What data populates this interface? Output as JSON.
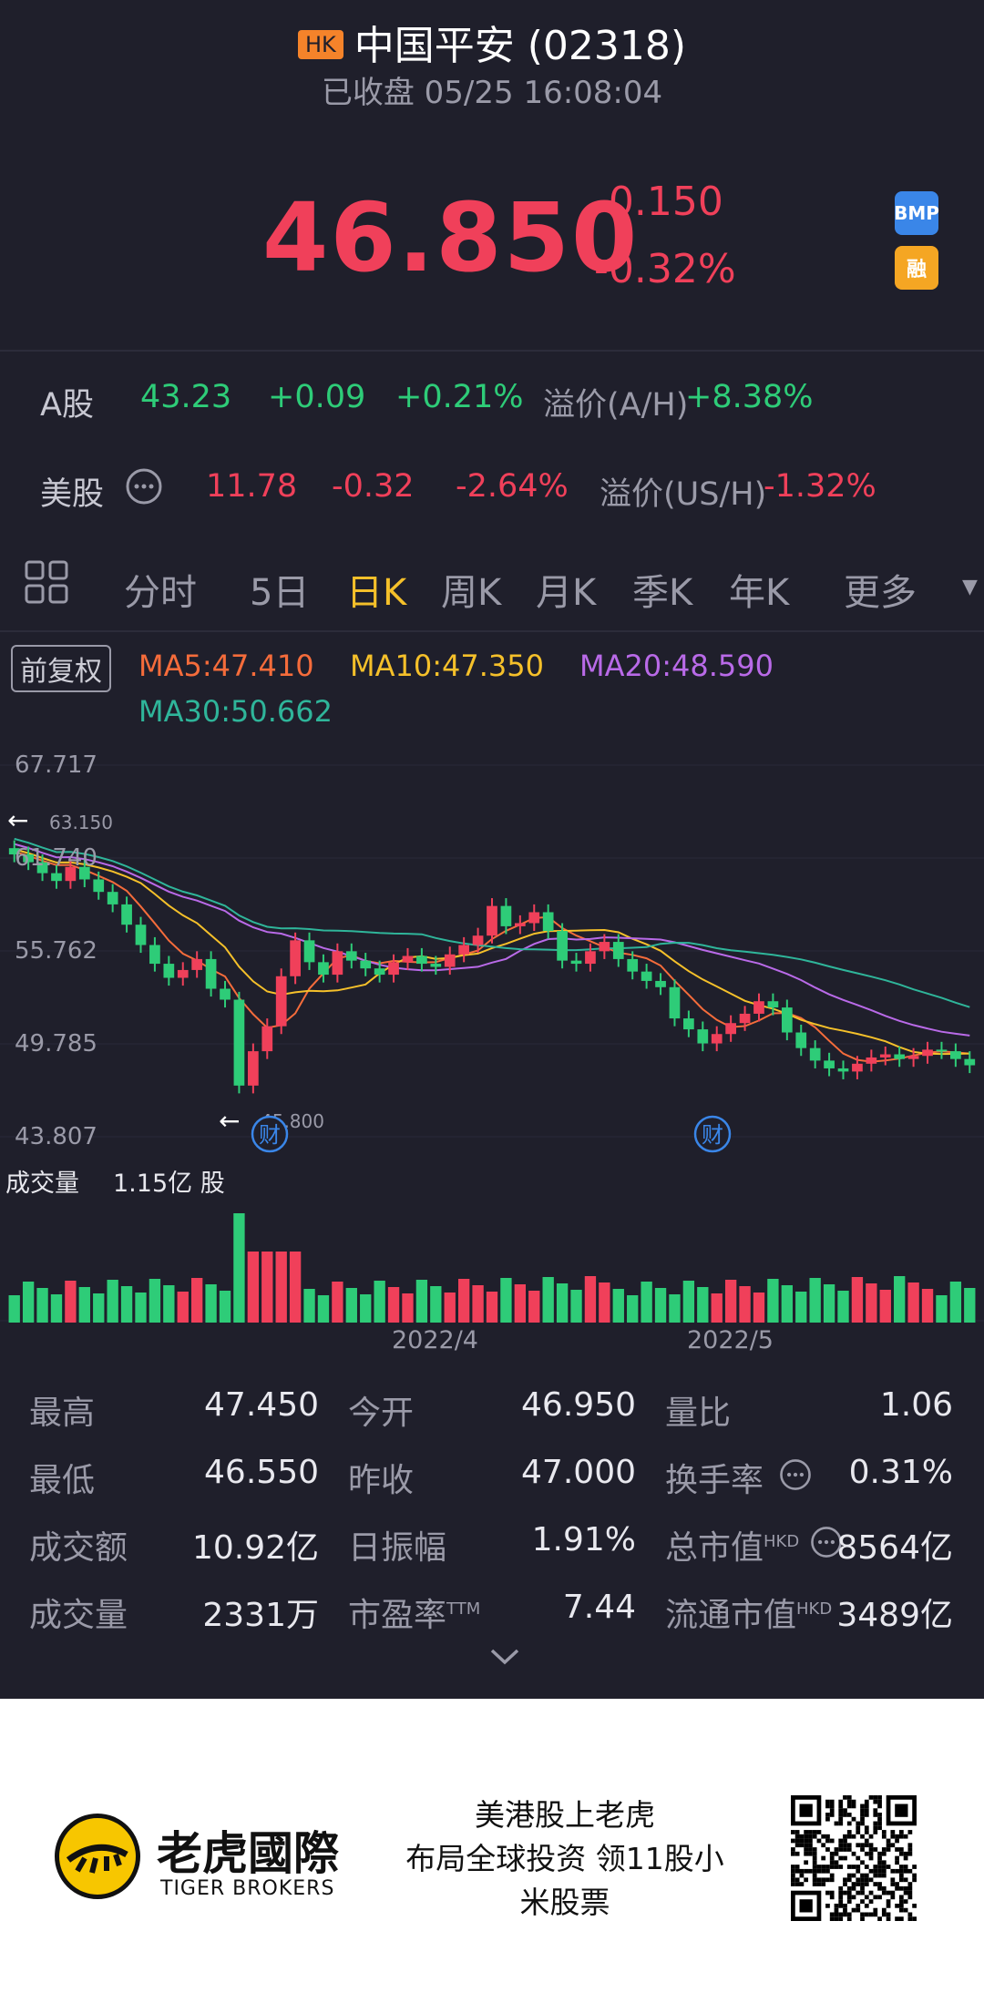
{
  "header": {
    "market_badge": "HK",
    "stock_title": "中国平安 (02318)",
    "status": "已收盘",
    "datetime": "05/25 16:08:04",
    "price": "46.850",
    "change": "-0.150",
    "change_pct": "-0.32%",
    "badge_bmp": "BMP",
    "badge_margin": "融"
  },
  "a_share": {
    "label": "A股",
    "price": "43.23",
    "change": "+0.09",
    "change_pct": "+0.21%",
    "premium_label": "溢价(A/H)",
    "premium": "+8.38%"
  },
  "us_share": {
    "label": "美股",
    "price": "11.78",
    "change": "-0.32",
    "change_pct": "-2.64%",
    "premium_label": "溢价(US/H)",
    "premium": "-1.32%"
  },
  "tabs": [
    "分时",
    "5日",
    "日K",
    "周K",
    "月K",
    "季K",
    "年K",
    "更多"
  ],
  "active_tab": "日K",
  "ma": {
    "adjust": "前复权",
    "ma5": "MA5:47.410",
    "ma10": "MA10:47.350",
    "ma20": "MA20:48.590",
    "ma30": "MA30:50.662"
  },
  "chart_data": {
    "type": "candlestick",
    "y_ticks": [
      "67.717",
      "61.740",
      "55.762",
      "49.785",
      "43.807"
    ],
    "high_marker": "63.150",
    "low_marker": "45.800",
    "earnings_marker": "财",
    "x_labels": [
      "2022/4",
      "2022/5"
    ],
    "volume_label": "成交量",
    "volume_value": "1.15亿 股",
    "colors": {
      "up": "#f0405a",
      "down": "#2ecc78",
      "ma5": "#f56c3b",
      "ma10": "#f5c02a",
      "ma20": "#b96ae8",
      "ma30": "#2fb59a"
    }
  },
  "stats": {
    "high_label": "最高",
    "high": "47.450",
    "open_label": "今开",
    "open": "46.950",
    "vol_ratio_label": "量比",
    "vol_ratio": "1.06",
    "low_label": "最低",
    "low": "46.550",
    "prev_close_label": "昨收",
    "prev_close": "47.000",
    "turnover_label": "换手率",
    "turnover": "0.31%",
    "amount_label": "成交额",
    "amount": "10.92亿",
    "amplitude_label": "日振幅",
    "amplitude": "1.91%",
    "mktcap_label": "总市值",
    "mktcap_sup": "HKD",
    "mktcap": "8564亿",
    "volume_label": "成交量",
    "volume": "2331万",
    "pe_label": "市盈率",
    "pe_sup": "TTM",
    "pe": "7.44",
    "float_label": "流通市值",
    "float_sup": "HKD",
    "float": "3489亿"
  },
  "footer": {
    "brand_cn": "老虎國際",
    "brand_en": "TIGER BROKERS",
    "slogan1": "美港股上老虎",
    "slogan2": "布局全球投资 领11股小",
    "slogan3": "米股票"
  }
}
